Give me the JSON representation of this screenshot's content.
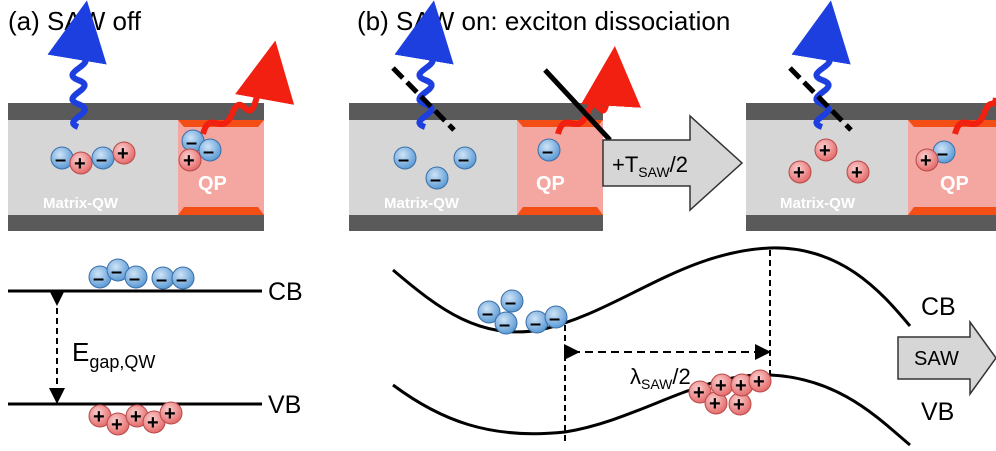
{
  "panel_a": {
    "title": "(a) SAW off",
    "matrix_label": "Matrix-QW",
    "qp_label": "QP",
    "cb_label": "CB",
    "vb_label": "VB",
    "egap_main": "E",
    "egap_sub": "gap,QW"
  },
  "panel_b": {
    "title": "(b) SAW on: exciton dissociation",
    "matrix_label": "Matrix-QW",
    "qp_label": "QP",
    "time_step": "+T",
    "time_sub": "SAW",
    "time_tail": "/2",
    "cb_label": "CB",
    "vb_label": "VB",
    "lambda_main": "λ",
    "lambda_sub": "SAW",
    "lambda_tail": "/2",
    "saw_arrow": "SAW"
  },
  "signs": {
    "minus": "–",
    "plus": "+"
  },
  "colors": {
    "electron": "#5b9bd5",
    "hole": "#ef7575",
    "qw_fill": "#d6d6d6",
    "barrier": "#5a5a5a",
    "qp_fill": "#f4a7a0",
    "qp_edge": "#f24e16",
    "blue_photon": "#1d3fe0",
    "red_photon": "#f22010"
  }
}
